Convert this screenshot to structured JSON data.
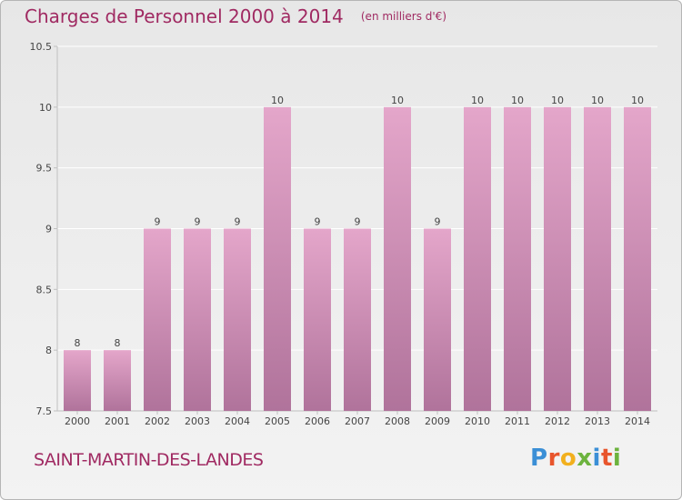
{
  "header": {
    "title": "Charges de Personnel 2000 à 2014",
    "subtitle": "(en milliers d'€)"
  },
  "footer": {
    "commune": "SAINT-MARTIN-DES-LANDES",
    "brand": "Proxiti"
  },
  "colors": {
    "title": "#a02a62",
    "bar_top": "#e4a6ca",
    "bar_bottom": "#b0739b",
    "axis": "#c0c0c0",
    "grid": "#ffffff",
    "logo_letters": [
      "#3b8fd6",
      "#e8552c",
      "#f2b01e",
      "#6cb33e",
      "#3b8fd6",
      "#e8552c",
      "#6cb33e"
    ]
  },
  "chart_data": {
    "type": "bar",
    "title": "Charges de Personnel 2000 à 2014",
    "subtitle": "(en milliers d'€)",
    "categories": [
      "2000",
      "2001",
      "2002",
      "2003",
      "2004",
      "2005",
      "2006",
      "2007",
      "2008",
      "2009",
      "2010",
      "2011",
      "2012",
      "2013",
      "2014"
    ],
    "values": [
      8,
      8,
      9,
      9,
      9,
      10,
      9,
      9,
      10,
      9,
      10,
      10,
      10,
      10,
      10
    ],
    "data_labels": [
      "8",
      "8",
      "9",
      "9",
      "9",
      "10",
      "9",
      "9",
      "10",
      "9",
      "10",
      "10",
      "10",
      "10",
      "10"
    ],
    "ylim": [
      7.5,
      10.5
    ],
    "yticks": [
      7.5,
      8,
      8.5,
      9,
      9.5,
      10,
      10.5
    ],
    "ytick_labels": [
      "7.5",
      "8",
      "8.5",
      "9",
      "9.5",
      "10",
      "10.5"
    ],
    "grid": true,
    "xlabel": "",
    "ylabel": ""
  }
}
